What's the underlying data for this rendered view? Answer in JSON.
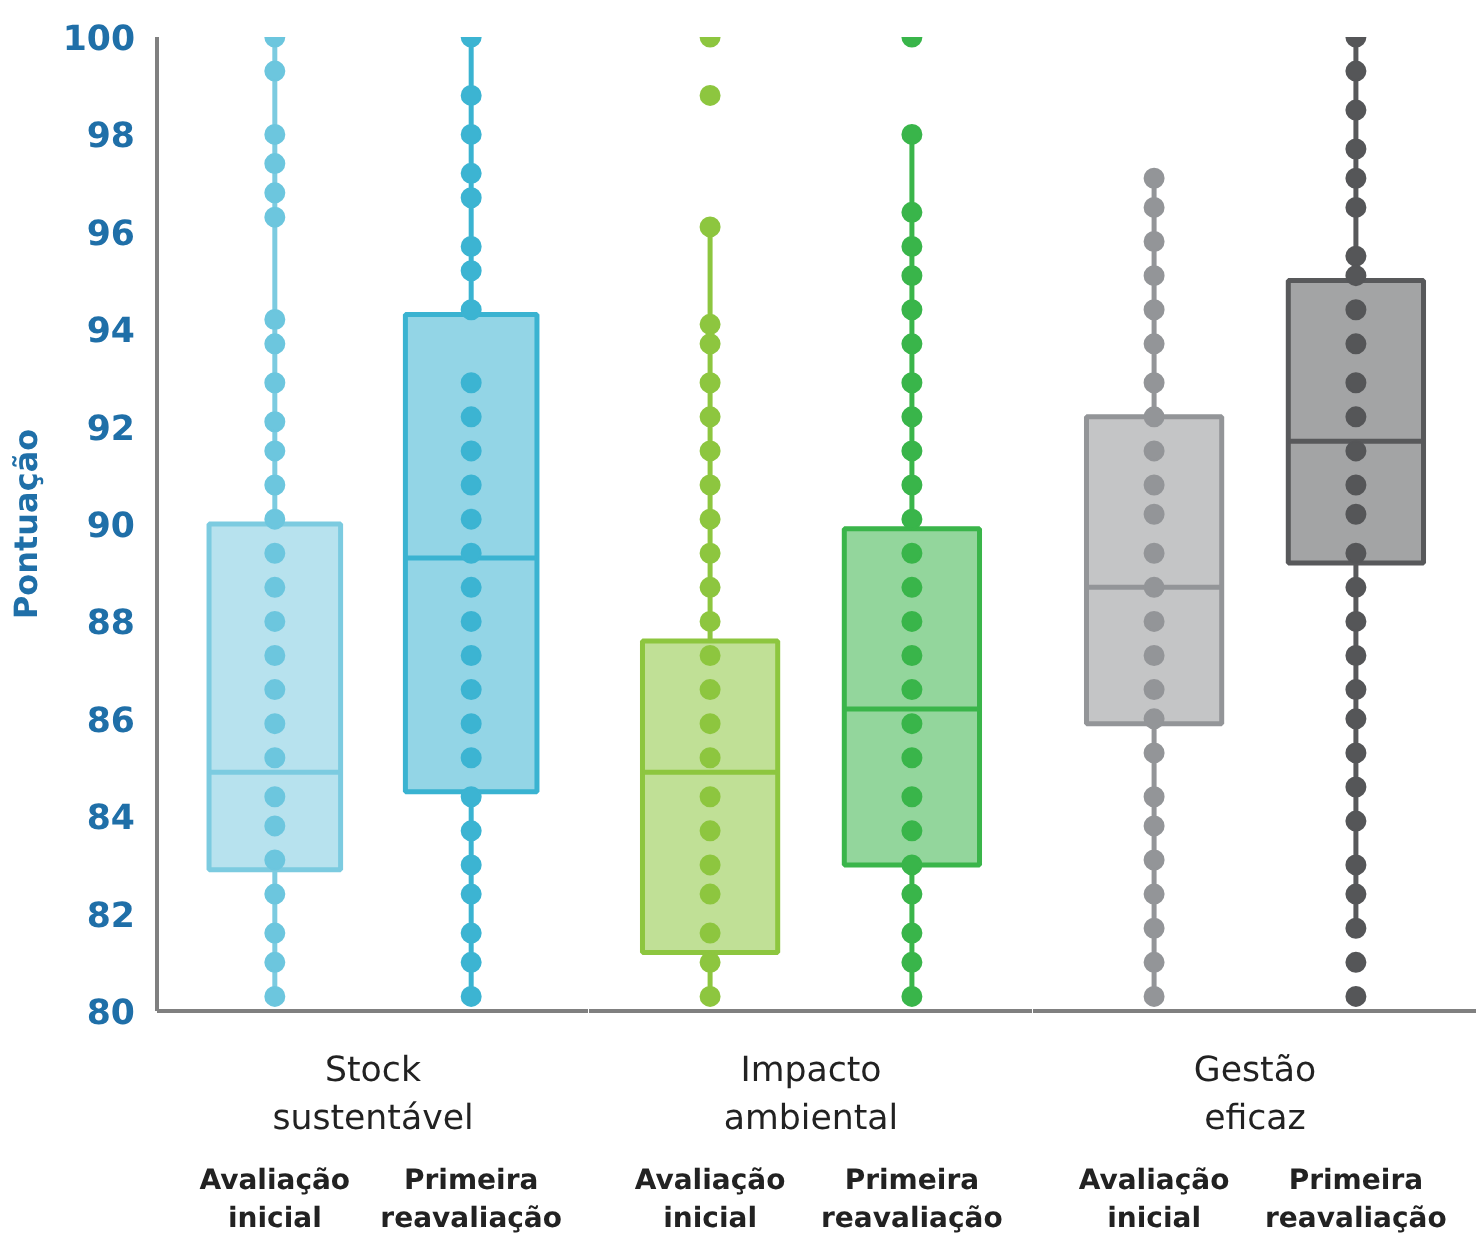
{
  "chart_data": [
    {
      "type": "box",
      "title": "Stock sustentável",
      "ylabel": "Pontuação",
      "categories": [
        "Avaliação inicial",
        "Primeira reavaliação"
      ],
      "ylim": [
        80,
        100
      ],
      "yticks": [
        80,
        82,
        84,
        86,
        88,
        90,
        92,
        94,
        96,
        98,
        100
      ],
      "grid": false,
      "colors": [
        "#7ccbe0",
        "#3ab3d1"
      ],
      "boxes": [
        {
          "low": 80.3,
          "q1": 82.9,
          "median": 84.9,
          "q3": 90.0,
          "high": 100
        },
        {
          "low": 80.3,
          "q1": 84.5,
          "median": 89.3,
          "q3": 94.3,
          "high": 100
        }
      ],
      "series": [
        {
          "type": "scatter",
          "color": "#6cc6de",
          "x": [
            "Avaliação inicial",
            "Avaliação inicial",
            "Avaliação inicial",
            "Avaliação inicial",
            "Avaliação inicial",
            "Avaliação inicial",
            "Avaliação inicial",
            "Avaliação inicial",
            "Avaliação inicial",
            "Avaliação inicial",
            "Avaliação inicial",
            "Avaliação inicial",
            "Avaliação inicial",
            "Avaliação inicial",
            "Avaliação inicial",
            "Avaliação inicial",
            "Avaliação inicial",
            "Avaliação inicial",
            "Avaliação inicial",
            "Avaliação inicial",
            "Avaliação inicial",
            "Avaliação inicial",
            "Avaliação inicial",
            "Avaliação inicial",
            "Avaliação inicial",
            "Avaliação inicial",
            "Avaliação inicial"
          ],
          "values": [
            100,
            99.3,
            98.0,
            97.4,
            96.8,
            96.3,
            94.2,
            93.7,
            92.9,
            92.1,
            91.5,
            90.8,
            90.1,
            89.4,
            88.7,
            88.0,
            87.3,
            86.6,
            85.9,
            85.2,
            84.4,
            83.8,
            83.1,
            82.4,
            81.6,
            81.0,
            80.3
          ]
        },
        {
          "type": "scatter",
          "color": "#3cb4d2",
          "x": [
            "Primeira reavaliação",
            "Primeira reavaliação",
            "Primeira reavaliação",
            "Primeira reavaliação",
            "Primeira reavaliação",
            "Primeira reavaliação",
            "Primeira reavaliação",
            "Primeira reavaliação",
            "Primeira reavaliação",
            "Primeira reavaliação",
            "Primeira reavaliação",
            "Primeira reavaliação",
            "Primeira reavaliação",
            "Primeira reavaliação",
            "Primeira reavaliação",
            "Primeira reavaliação",
            "Primeira reavaliação",
            "Primeira reavaliação",
            "Primeira reavaliação",
            "Primeira reavaliação",
            "Primeira reavaliação",
            "Primeira reavaliação",
            "Primeira reavaliação",
            "Primeira reavaliação",
            "Primeira reavaliação",
            "Primeira reavaliação",
            "Primeira reavaliação"
          ],
          "values": [
            100,
            98.8,
            98.0,
            97.2,
            96.7,
            95.7,
            95.2,
            94.4,
            92.9,
            92.2,
            91.5,
            90.8,
            90.1,
            89.4,
            88.7,
            88.0,
            87.3,
            86.6,
            85.9,
            85.2,
            84.4,
            83.7,
            83.0,
            82.4,
            81.6,
            81.0,
            80.3
          ]
        }
      ]
    },
    {
      "type": "box",
      "title": "Impacto ambiental",
      "tick_labels": "x",
      "categories": [
        "Avaliação inicial",
        "Primeira reavaliação"
      ],
      "ylim": [
        80,
        100
      ],
      "yticks": [
        80,
        82,
        84,
        86,
        88,
        90,
        92,
        94,
        96,
        98,
        100
      ],
      "grid": false,
      "colors": [
        "#8dc63f",
        "#3ab54a"
      ],
      "boxes": [
        {
          "low": 80.3,
          "q1": 81.2,
          "median": 84.9,
          "q3": 87.6,
          "high": 96.1
        },
        {
          "low": 80.3,
          "q1": 83.0,
          "median": 86.2,
          "q3": 89.9,
          "high": 98.0
        }
      ],
      "series": [
        {
          "type": "scatter",
          "color": "#8dc63f",
          "x": [
            "Avaliação inicial",
            "Avaliação inicial",
            "Avaliação inicial",
            "Avaliação inicial",
            "Avaliação inicial",
            "Avaliação inicial",
            "Avaliação inicial",
            "Avaliação inicial",
            "Avaliação inicial",
            "Avaliação inicial",
            "Avaliação inicial",
            "Avaliação inicial",
            "Avaliação inicial",
            "Avaliação inicial",
            "Avaliação inicial",
            "Avaliação inicial",
            "Avaliação inicial",
            "Avaliação inicial",
            "Avaliação inicial",
            "Avaliação inicial",
            "Avaliação inicial",
            "Avaliação inicial",
            "Avaliação inicial",
            "Avaliação inicial"
          ],
          "values": [
            100,
            98.8,
            96.1,
            94.1,
            93.7,
            92.9,
            92.2,
            91.5,
            90.8,
            90.1,
            89.4,
            88.7,
            88.0,
            87.3,
            86.6,
            85.9,
            85.2,
            84.4,
            83.7,
            83.0,
            82.4,
            81.6,
            81.0,
            80.3
          ]
        },
        {
          "type": "scatter",
          "color": "#39b54a",
          "x": [
            "Primeira reavaliação",
            "Primeira reavaliação",
            "Primeira reavaliação",
            "Primeira reavaliação",
            "Primeira reavaliação",
            "Primeira reavaliação",
            "Primeira reavaliação",
            "Primeira reavaliação",
            "Primeira reavaliação",
            "Primeira reavaliação",
            "Primeira reavaliação",
            "Primeira reavaliação",
            "Primeira reavaliação",
            "Primeira reavaliação",
            "Primeira reavaliação",
            "Primeira reavaliação",
            "Primeira reavaliação",
            "Primeira reavaliação",
            "Primeira reavaliação",
            "Primeira reavaliação",
            "Primeira reavaliação",
            "Primeira reavaliação",
            "Primeira reavaliação",
            "Primeira reavaliação",
            "Primeira reavaliação",
            "Primeira reavaliação"
          ],
          "values": [
            100,
            98.0,
            96.4,
            95.7,
            95.1,
            94.4,
            93.7,
            92.9,
            92.2,
            91.5,
            90.8,
            90.1,
            89.4,
            88.7,
            88.0,
            87.3,
            86.6,
            85.9,
            85.2,
            84.4,
            83.7,
            83.0,
            82.4,
            81.6,
            81.0,
            80.3
          ]
        }
      ]
    },
    {
      "type": "box",
      "title": "Gestão eficaz",
      "tick_labels": "x",
      "categories": [
        "Avaliação inicial",
        "Primeira reavaliação"
      ],
      "ylim": [
        80,
        100
      ],
      "yticks": [
        80,
        82,
        84,
        86,
        88,
        90,
        92,
        94,
        96,
        98,
        100
      ],
      "grid": false,
      "colors": [
        "#939598",
        "#58595b"
      ],
      "boxes": [
        {
          "low": 80.3,
          "q1": 85.9,
          "median": 88.7,
          "q3": 92.2,
          "high": 97.1
        },
        {
          "low": 81.7,
          "q1": 89.2,
          "median": 91.7,
          "q3": 95.0,
          "high": 100
        }
      ],
      "series": [
        {
          "type": "scatter",
          "color": "#939598",
          "x": [
            "Avaliação inicial",
            "Avaliação inicial",
            "Avaliação inicial",
            "Avaliação inicial",
            "Avaliação inicial",
            "Avaliação inicial",
            "Avaliação inicial",
            "Avaliação inicial",
            "Avaliação inicial",
            "Avaliação inicial",
            "Avaliação inicial",
            "Avaliação inicial",
            "Avaliação inicial",
            "Avaliação inicial",
            "Avaliação inicial",
            "Avaliação inicial",
            "Avaliação inicial",
            "Avaliação inicial",
            "Avaliação inicial",
            "Avaliação inicial",
            "Avaliação inicial",
            "Avaliação inicial",
            "Avaliação inicial",
            "Avaliação inicial",
            "Avaliação inicial"
          ],
          "values": [
            97.1,
            96.5,
            95.8,
            95.1,
            94.4,
            93.7,
            92.9,
            92.2,
            91.5,
            90.8,
            90.2,
            89.4,
            88.7,
            88.0,
            87.3,
            86.6,
            86.0,
            85.3,
            84.4,
            83.8,
            83.1,
            82.4,
            81.7,
            81.0,
            80.3
          ]
        },
        {
          "type": "scatter",
          "color": "#555658",
          "x": [
            "Primeira reavaliação",
            "Primeira reavaliação",
            "Primeira reavaliação",
            "Primeira reavaliação",
            "Primeira reavaliação",
            "Primeira reavaliação",
            "Primeira reavaliação",
            "Primeira reavaliação",
            "Primeira reavaliação",
            "Primeira reavaliação",
            "Primeira reavaliação",
            "Primeira reavaliação",
            "Primeira reavaliação",
            "Primeira reavaliação",
            "Primeira reavaliação",
            "Primeira reavaliação",
            "Primeira reavaliação",
            "Primeira reavaliação",
            "Primeira reavaliação",
            "Primeira reavaliação",
            "Primeira reavaliação",
            "Primeira reavaliação",
            "Primeira reavaliação",
            "Primeira reavaliação",
            "Primeira reavaliação",
            "Primeira reavaliação",
            "Primeira reavaliação",
            "Primeira reavaliação",
            "Primeira reavaliação"
          ],
          "values": [
            100,
            99.3,
            98.5,
            97.7,
            97.1,
            96.5,
            95.5,
            95.1,
            94.4,
            93.7,
            92.9,
            92.2,
            91.5,
            90.8,
            90.2,
            89.4,
            88.7,
            88.0,
            87.3,
            86.6,
            86.0,
            85.3,
            84.6,
            83.9,
            83.0,
            82.4,
            81.7,
            81.0,
            80.3
          ]
        }
      ]
    }
  ]
}
